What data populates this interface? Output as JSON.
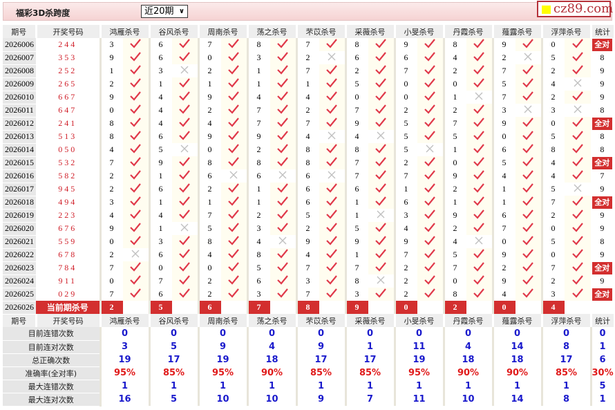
{
  "header": {
    "title": "福彩3D杀跨度",
    "period_select": "近20期",
    "logo_text": "cz89.com"
  },
  "columns": {
    "period": "期号",
    "draw": "开奖号码",
    "stat": "统计"
  },
  "experts": [
    "鸿雁杀号",
    "谷风杀号",
    "周南杀号",
    "荡之杀号",
    "芣苡杀号",
    "采薇杀号",
    "小旻杀号",
    "丹霞杀号",
    "薤露杀号",
    "浮萍杀号"
  ],
  "all_correct_label": "全对",
  "rows": [
    {
      "period": "2026006",
      "draw": "244",
      "picks": [
        [
          3,
          1
        ],
        [
          6,
          1
        ],
        [
          7,
          1
        ],
        [
          8,
          1
        ],
        [
          7,
          1
        ],
        [
          8,
          1
        ],
        [
          9,
          1
        ],
        [
          8,
          1
        ],
        [
          9,
          1
        ],
        [
          0,
          1
        ]
      ],
      "stat": "全对"
    },
    {
      "period": "2026007",
      "draw": "353",
      "picks": [
        [
          9,
          1
        ],
        [
          6,
          1
        ],
        [
          0,
          1
        ],
        [
          3,
          1
        ],
        [
          2,
          0
        ],
        [
          6,
          1
        ],
        [
          6,
          1
        ],
        [
          4,
          1
        ],
        [
          2,
          0
        ],
        [
          5,
          1
        ]
      ],
      "stat": "8"
    },
    {
      "period": "2026008",
      "draw": "252",
      "picks": [
        [
          1,
          1
        ],
        [
          3,
          0
        ],
        [
          2,
          1
        ],
        [
          1,
          1
        ],
        [
          7,
          1
        ],
        [
          2,
          1
        ],
        [
          7,
          1
        ],
        [
          2,
          1
        ],
        [
          7,
          1
        ],
        [
          2,
          1
        ]
      ],
      "stat": "9"
    },
    {
      "period": "2026009",
      "draw": "265",
      "picks": [
        [
          2,
          1
        ],
        [
          1,
          1
        ],
        [
          1,
          1
        ],
        [
          1,
          1
        ],
        [
          1,
          1
        ],
        [
          5,
          1
        ],
        [
          0,
          1
        ],
        [
          0,
          1
        ],
        [
          5,
          1
        ],
        [
          4,
          0
        ]
      ],
      "stat": "9"
    },
    {
      "period": "2026010",
      "draw": "667",
      "picks": [
        [
          9,
          1
        ],
        [
          4,
          1
        ],
        [
          9,
          1
        ],
        [
          4,
          1
        ],
        [
          4,
          1
        ],
        [
          0,
          1
        ],
        [
          0,
          1
        ],
        [
          1,
          0
        ],
        [
          7,
          1
        ],
        [
          2,
          1
        ]
      ],
      "stat": "9"
    },
    {
      "period": "2026011",
      "draw": "647",
      "picks": [
        [
          0,
          1
        ],
        [
          4,
          1
        ],
        [
          2,
          1
        ],
        [
          7,
          1
        ],
        [
          2,
          1
        ],
        [
          7,
          1
        ],
        [
          2,
          1
        ],
        [
          2,
          1
        ],
        [
          3,
          0
        ],
        [
          3,
          0
        ]
      ],
      "stat": "8"
    },
    {
      "period": "2026012",
      "draw": "241",
      "picks": [
        [
          8,
          1
        ],
        [
          4,
          1
        ],
        [
          4,
          1
        ],
        [
          7,
          1
        ],
        [
          7,
          1
        ],
        [
          9,
          1
        ],
        [
          5,
          1
        ],
        [
          7,
          1
        ],
        [
          9,
          1
        ],
        [
          0,
          1
        ]
      ],
      "stat": "全对"
    },
    {
      "period": "2026013",
      "draw": "513",
      "picks": [
        [
          8,
          1
        ],
        [
          6,
          1
        ],
        [
          9,
          1
        ],
        [
          9,
          1
        ],
        [
          4,
          0
        ],
        [
          4,
          0
        ],
        [
          5,
          1
        ],
        [
          5,
          1
        ],
        [
          0,
          1
        ],
        [
          5,
          1
        ]
      ],
      "stat": "8"
    },
    {
      "period": "2026014",
      "draw": "050",
      "picks": [
        [
          4,
          1
        ],
        [
          5,
          0
        ],
        [
          0,
          1
        ],
        [
          2,
          1
        ],
        [
          8,
          1
        ],
        [
          8,
          1
        ],
        [
          5,
          0
        ],
        [
          1,
          1
        ],
        [
          6,
          1
        ],
        [
          8,
          1
        ]
      ],
      "stat": "8"
    },
    {
      "period": "2026015",
      "draw": "532",
      "picks": [
        [
          7,
          1
        ],
        [
          9,
          1
        ],
        [
          8,
          1
        ],
        [
          8,
          1
        ],
        [
          8,
          1
        ],
        [
          7,
          1
        ],
        [
          2,
          1
        ],
        [
          0,
          1
        ],
        [
          5,
          1
        ],
        [
          4,
          1
        ]
      ],
      "stat": "全对"
    },
    {
      "period": "2026016",
      "draw": "582",
      "picks": [
        [
          2,
          1
        ],
        [
          1,
          1
        ],
        [
          6,
          0
        ],
        [
          6,
          0
        ],
        [
          6,
          0
        ],
        [
          7,
          1
        ],
        [
          7,
          1
        ],
        [
          9,
          1
        ],
        [
          4,
          1
        ],
        [
          4,
          1
        ]
      ],
      "stat": "7"
    },
    {
      "period": "2026017",
      "draw": "945",
      "picks": [
        [
          2,
          1
        ],
        [
          6,
          1
        ],
        [
          2,
          1
        ],
        [
          1,
          1
        ],
        [
          6,
          1
        ],
        [
          6,
          1
        ],
        [
          1,
          1
        ],
        [
          2,
          1
        ],
        [
          1,
          1
        ],
        [
          5,
          0
        ]
      ],
      "stat": "9"
    },
    {
      "period": "2026018",
      "draw": "494",
      "picks": [
        [
          3,
          1
        ],
        [
          1,
          1
        ],
        [
          1,
          1
        ],
        [
          1,
          1
        ],
        [
          6,
          1
        ],
        [
          1,
          1
        ],
        [
          6,
          1
        ],
        [
          1,
          1
        ],
        [
          1,
          1
        ],
        [
          7,
          1
        ]
      ],
      "stat": "全对"
    },
    {
      "period": "2026019",
      "draw": "223",
      "picks": [
        [
          4,
          1
        ],
        [
          4,
          1
        ],
        [
          7,
          1
        ],
        [
          2,
          1
        ],
        [
          5,
          1
        ],
        [
          1,
          0
        ],
        [
          3,
          1
        ],
        [
          9,
          1
        ],
        [
          6,
          1
        ],
        [
          2,
          1
        ]
      ],
      "stat": "9"
    },
    {
      "period": "2026020",
      "draw": "676",
      "picks": [
        [
          9,
          1
        ],
        [
          1,
          0
        ],
        [
          5,
          1
        ],
        [
          3,
          1
        ],
        [
          2,
          1
        ],
        [
          5,
          1
        ],
        [
          4,
          1
        ],
        [
          2,
          1
        ],
        [
          7,
          1
        ],
        [
          0,
          1
        ]
      ],
      "stat": "9"
    },
    {
      "period": "2026021",
      "draw": "559",
      "picks": [
        [
          0,
          1
        ],
        [
          3,
          1
        ],
        [
          8,
          1
        ],
        [
          4,
          0
        ],
        [
          9,
          1
        ],
        [
          9,
          1
        ],
        [
          9,
          1
        ],
        [
          4,
          0
        ],
        [
          0,
          1
        ],
        [
          5,
          1
        ]
      ],
      "stat": "8"
    },
    {
      "period": "2026022",
      "draw": "678",
      "picks": [
        [
          2,
          0
        ],
        [
          6,
          1
        ],
        [
          4,
          1
        ],
        [
          8,
          1
        ],
        [
          4,
          1
        ],
        [
          1,
          1
        ],
        [
          7,
          1
        ],
        [
          5,
          1
        ],
        [
          9,
          1
        ],
        [
          0,
          1
        ]
      ],
      "stat": "9"
    },
    {
      "period": "2026023",
      "draw": "784",
      "picks": [
        [
          7,
          1
        ],
        [
          0,
          1
        ],
        [
          0,
          1
        ],
        [
          5,
          1
        ],
        [
          7,
          1
        ],
        [
          7,
          1
        ],
        [
          2,
          1
        ],
        [
          7,
          1
        ],
        [
          2,
          1
        ],
        [
          7,
          1
        ]
      ],
      "stat": "全对"
    },
    {
      "period": "2026024",
      "draw": "911",
      "picks": [
        [
          0,
          1
        ],
        [
          7,
          1
        ],
        [
          2,
          1
        ],
        [
          6,
          1
        ],
        [
          3,
          1
        ],
        [
          8,
          0
        ],
        [
          2,
          1
        ],
        [
          0,
          1
        ],
        [
          9,
          1
        ],
        [
          2,
          1
        ]
      ],
      "stat": "9"
    },
    {
      "period": "2026025",
      "draw": "029",
      "picks": [
        [
          7,
          1
        ],
        [
          6,
          1
        ],
        [
          2,
          1
        ],
        [
          3,
          1
        ],
        [
          7,
          1
        ],
        [
          3,
          1
        ],
        [
          2,
          1
        ],
        [
          8,
          1
        ],
        [
          4,
          1
        ],
        [
          3,
          1
        ]
      ],
      "stat": "全对"
    }
  ],
  "current": {
    "period": "2026026",
    "label": "当前期杀号",
    "picks": [
      "2",
      "5",
      "6",
      "7",
      "8",
      "9",
      "0",
      "2",
      "0",
      "4"
    ]
  },
  "stats": [
    {
      "label": "目前连错次数",
      "values": [
        "0",
        "0",
        "0",
        "0",
        "0",
        "0",
        "0",
        "0",
        "0",
        "0",
        "0"
      ]
    },
    {
      "label": "目前连对次数",
      "values": [
        "3",
        "5",
        "9",
        "4",
        "9",
        "1",
        "11",
        "4",
        "14",
        "8",
        "1"
      ]
    },
    {
      "label": "总正确次数",
      "values": [
        "19",
        "17",
        "19",
        "18",
        "17",
        "17",
        "19",
        "18",
        "18",
        "17",
        "6"
      ]
    },
    {
      "label": "准确率(全对率)",
      "values": [
        "95%",
        "85%",
        "95%",
        "90%",
        "85%",
        "85%",
        "95%",
        "90%",
        "90%",
        "85%",
        "30%"
      ],
      "pct": true
    },
    {
      "label": "最大连错次数",
      "values": [
        "1",
        "1",
        "1",
        "1",
        "1",
        "1",
        "1",
        "1",
        "1",
        "1",
        "5"
      ]
    },
    {
      "label": "最大连对次数",
      "values": [
        "16",
        "5",
        "10",
        "10",
        "9",
        "7",
        "11",
        "10",
        "14",
        "8",
        "1"
      ]
    }
  ],
  "colors": {
    "accent": "#d32f2f",
    "check": "#e0394a",
    "cross": "#c0c0c0",
    "stat_value": "#1a1acc",
    "percent": "#e01b1b"
  }
}
